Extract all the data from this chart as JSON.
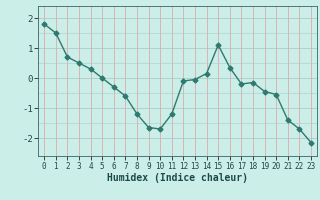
{
  "x": [
    0,
    1,
    2,
    3,
    4,
    5,
    6,
    7,
    8,
    9,
    10,
    11,
    12,
    13,
    14,
    15,
    16,
    17,
    18,
    19,
    20,
    21,
    22,
    23
  ],
  "y": [
    1.8,
    1.5,
    0.7,
    0.5,
    0.3,
    0.0,
    -0.3,
    -0.6,
    -1.2,
    -1.65,
    -1.7,
    -1.2,
    -0.1,
    -0.05,
    0.15,
    1.1,
    0.35,
    -0.2,
    -0.15,
    -0.45,
    -0.55,
    -1.4,
    -1.7,
    -2.15
  ],
  "line_color": "#2e7a6e",
  "marker": "D",
  "markersize": 2.5,
  "linewidth": 1.0,
  "bg_color": "#cceee8",
  "grid_color_h": "#aacccc",
  "grid_color_v_red": "#ddaaaa",
  "grid_color_v_teal": "#aacccc",
  "xlabel": "Humidex (Indice chaleur)",
  "xlabel_fontsize": 7,
  "ylim": [
    -2.6,
    2.4
  ],
  "xlim": [
    -0.5,
    23.5
  ],
  "yticks": [
    -2,
    -1,
    0,
    1,
    2
  ],
  "xticks": [
    0,
    1,
    2,
    3,
    4,
    5,
    6,
    7,
    8,
    9,
    10,
    11,
    12,
    13,
    14,
    15,
    16,
    17,
    18,
    19,
    20,
    21,
    22,
    23
  ],
  "tick_fontsize": 5.5,
  "ytick_fontsize": 6.5
}
